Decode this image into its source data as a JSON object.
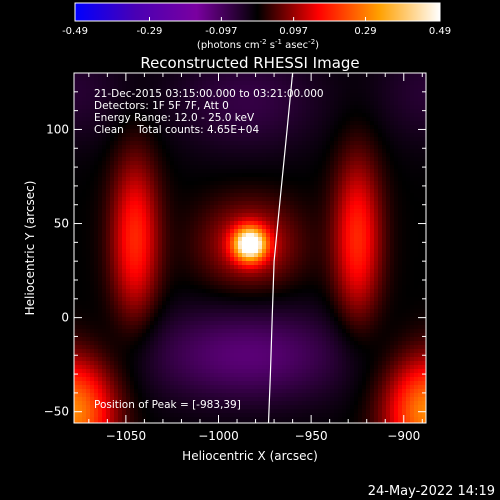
{
  "colorbar": {
    "ticks": [
      "-0.49",
      "-0.29",
      "-0.097",
      "0.097",
      "0.29",
      "0.49"
    ],
    "tick_values": [
      -0.49,
      -0.29,
      -0.097,
      0.097,
      0.29,
      0.49
    ],
    "range": [
      -0.49,
      0.49
    ],
    "units_base": "(photons cm",
    "units_sup1": "-2",
    "units_mid": " s",
    "units_sup2": "-1",
    "units_mid2": " asec",
    "units_sup3": "-2",
    "units_end": ")",
    "colormap": [
      "#0000ff",
      "#4a00b4",
      "#7a00a0",
      "#000000",
      "#ff0000",
      "#ffa000",
      "#ffffff"
    ]
  },
  "chart_data": {
    "type": "heatmap",
    "title": "Reconstructed RHESSI Image",
    "xlabel": "Heliocentric X (arcsec)",
    "ylabel": "Heliocentric Y (arcsec)",
    "xlim": [
      -1078,
      -888
    ],
    "ylim": [
      -56,
      130
    ],
    "xticks": [
      -1050,
      -1000,
      -950,
      -900
    ],
    "xtick_labels": [
      "−1050",
      "−1000",
      "−950",
      "−900"
    ],
    "yticks": [
      -50,
      0,
      50,
      100
    ],
    "ytick_labels": [
      "−50",
      "0",
      "50",
      "100"
    ],
    "grid": false,
    "info": [
      "21-Dec-2015 03:15:00.000 to 03:21:00.000",
      "Detectors: 1F 5F 7F, Att 0",
      "Energy Range: 12.0 - 25.0 keV",
      "Clean    Total counts: 4.65E+04"
    ],
    "peak_label": "Position of Peak = [-983,39]",
    "peak": [
      -983,
      39
    ],
    "limb_points": [
      [
        -960,
        130
      ],
      [
        -963,
        100
      ],
      [
        -967,
        60
      ],
      [
        -970,
        30
      ],
      [
        -971,
        0
      ],
      [
        -972,
        -30
      ],
      [
        -973,
        -56
      ]
    ],
    "components": [
      {
        "x": -983,
        "y": 39,
        "amp": 0.49,
        "sx": 6,
        "sy": 6
      },
      {
        "x": -983,
        "y": 39,
        "amp": 0.14,
        "sx": 18,
        "sy": 16
      },
      {
        "x": -1045,
        "y": 42,
        "amp": 0.2,
        "sx": 9,
        "sy": 30
      },
      {
        "x": -925,
        "y": 42,
        "amp": 0.2,
        "sx": 9,
        "sy": 30
      },
      {
        "x": -1078,
        "y": -50,
        "amp": 0.3,
        "sx": 15,
        "sy": 20
      },
      {
        "x": -888,
        "y": -50,
        "amp": 0.3,
        "sx": 15,
        "sy": 20
      },
      {
        "x": -985,
        "y": -20,
        "amp": -0.12,
        "sx": 40,
        "sy": 18
      },
      {
        "x": -985,
        "y": 115,
        "amp": -0.07,
        "sx": 30,
        "sy": 20
      },
      {
        "x": -1078,
        "y": 120,
        "amp": -0.05,
        "sx": 20,
        "sy": 20
      },
      {
        "x": -888,
        "y": 120,
        "amp": -0.05,
        "sx": 20,
        "sy": 20
      }
    ]
  },
  "footer": {
    "timestamp": "24-May-2022 14:19"
  }
}
